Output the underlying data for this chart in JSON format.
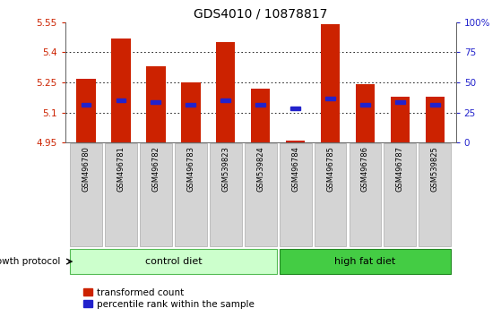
{
  "title": "GDS4010 / 10878817",
  "samples": [
    "GSM496780",
    "GSM496781",
    "GSM496782",
    "GSM496783",
    "GSM539823",
    "GSM539824",
    "GSM496784",
    "GSM496785",
    "GSM496786",
    "GSM496787",
    "GSM539825"
  ],
  "bar_tops": [
    5.27,
    5.47,
    5.33,
    5.25,
    5.45,
    5.22,
    4.96,
    5.54,
    5.24,
    5.18,
    5.18
  ],
  "bar_bottoms": [
    4.95,
    4.95,
    4.95,
    4.95,
    4.95,
    4.95,
    4.95,
    4.95,
    4.95,
    4.95,
    4.95
  ],
  "percentile_values": [
    5.14,
    5.16,
    5.15,
    5.14,
    5.16,
    5.14,
    5.12,
    5.17,
    5.14,
    5.15,
    5.14
  ],
  "ylim_left": [
    4.95,
    5.55
  ],
  "ylim_right": [
    0,
    100
  ],
  "yticks_left": [
    4.95,
    5.1,
    5.25,
    5.4,
    5.55
  ],
  "yticks_right": [
    0,
    25,
    50,
    75,
    100
  ],
  "ytick_labels_left": [
    "4.95",
    "5.1",
    "5.25",
    "5.4",
    "5.55"
  ],
  "ytick_labels_right": [
    "0",
    "25",
    "50",
    "75",
    "100%"
  ],
  "grid_yticks": [
    5.1,
    5.25,
    5.4
  ],
  "bar_color": "#cc2200",
  "percentile_color": "#2222cc",
  "control_samples": 6,
  "high_fat_samples": 5,
  "control_label": "control diet",
  "high_fat_label": "high fat diet",
  "growth_protocol_label": "growth protocol",
  "control_bg_light": "#ccffcc",
  "control_bg_dark": "#66dd66",
  "high_fat_bg": "#44cc44",
  "legend_red_label": "transformed count",
  "legend_blue_label": "percentile rank within the sample"
}
